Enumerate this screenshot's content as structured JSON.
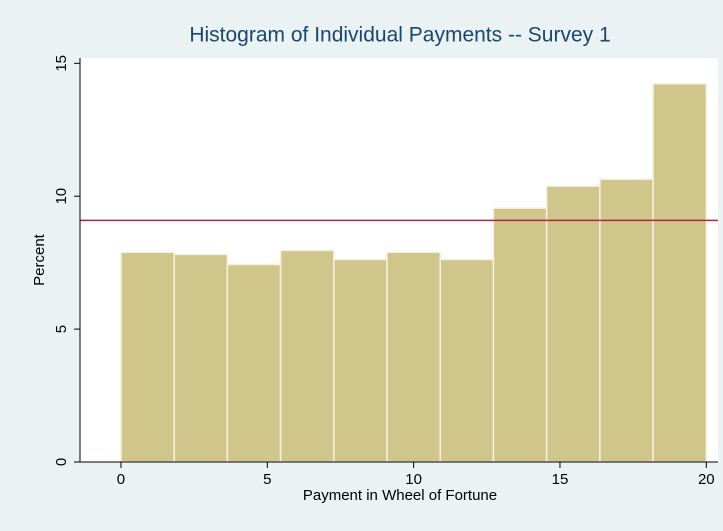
{
  "chart_data": {
    "type": "histogram",
    "title": "Histogram of Individual Payments -- Survey 1",
    "x_label": "Payment in Wheel of Fortune",
    "y_label": "Percent",
    "bins": [
      0,
      1.818,
      3.636,
      5.455,
      7.273,
      9.091,
      10.909,
      12.727,
      14.545,
      16.364,
      18.182,
      20
    ],
    "values": [
      7.89,
      7.81,
      7.43,
      7.96,
      7.62,
      7.89,
      7.62,
      9.55,
      10.38,
      10.64,
      14.23
    ],
    "color": "#d0c68c",
    "edge_color": "#f4f1df",
    "reference_line": {
      "value": 9.09,
      "color": "#b0263a"
    },
    "xlim": [
      -1.4,
      20.4
    ],
    "xticks": [
      0,
      5,
      10,
      15,
      20
    ],
    "ylim": [
      0,
      15.2
    ],
    "yticks": [
      0,
      5,
      10,
      15
    ]
  }
}
